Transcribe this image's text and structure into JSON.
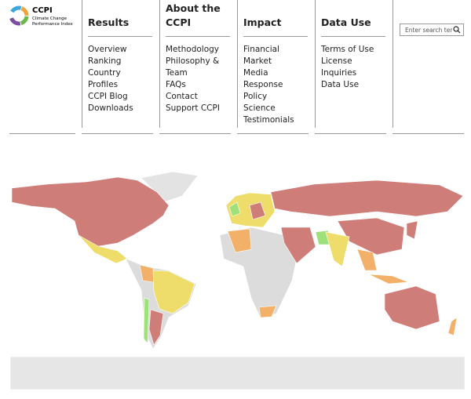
{
  "logo": {
    "title": "CCPI",
    "line1": "Climate Change",
    "line2": "Performance Index"
  },
  "nav": [
    {
      "heading": "Results",
      "links": [
        "Overview",
        "Ranking",
        "Country Profiles",
        "CCPI Blog",
        "Downloads"
      ]
    },
    {
      "heading": "About the CCPI",
      "links": [
        "Methodology",
        "Philosophy & Team",
        "FAQs",
        "Contact",
        "Support CCPI"
      ]
    },
    {
      "heading": "Impact",
      "links": [
        "Financial Market",
        "Media Response",
        "Policy",
        "Science",
        "Testimonials"
      ]
    },
    {
      "heading": "Data Use",
      "links": [
        "Terms of Use",
        "License Inquiries",
        "Data Use"
      ]
    }
  ],
  "search": {
    "placeholder": "Enter search term"
  }
}
